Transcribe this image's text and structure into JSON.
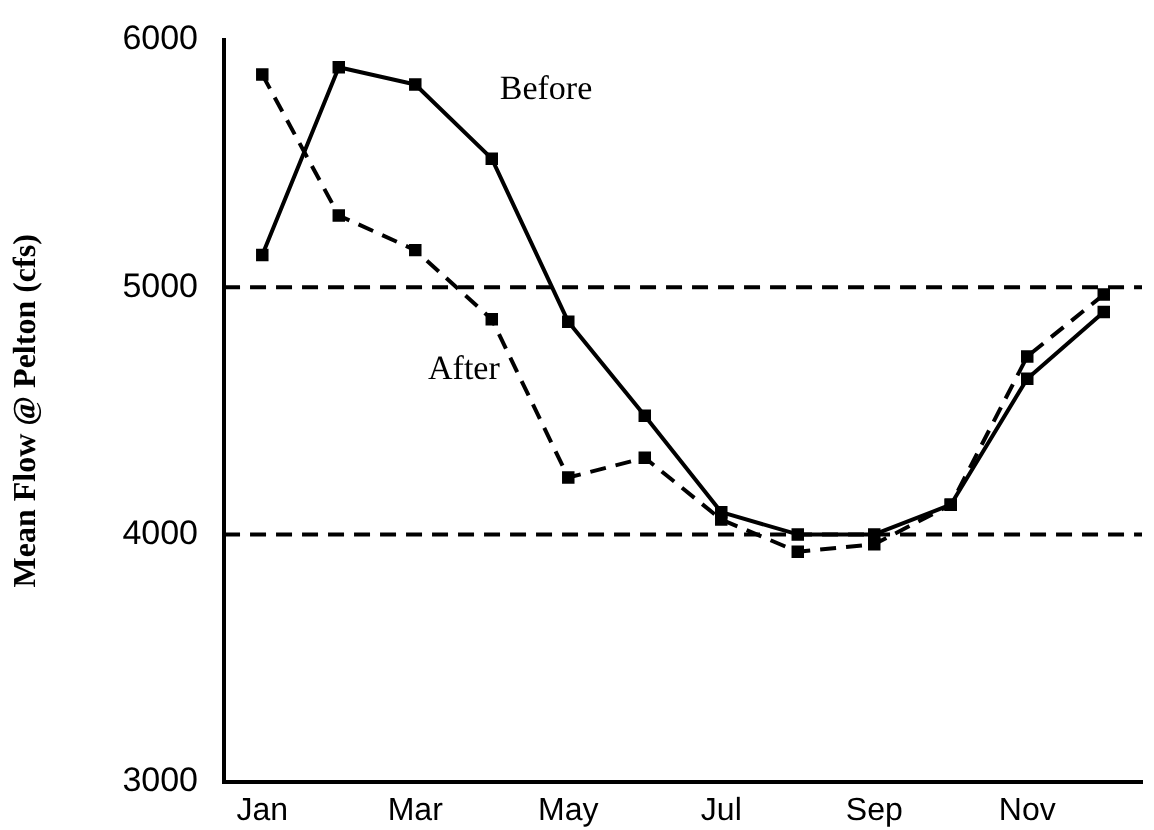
{
  "chart_data": {
    "type": "line",
    "ylabel": "Mean Flow @ Pelton (cfs)",
    "categories": [
      "Jan",
      null,
      "Mar",
      null,
      "May",
      null,
      "Jul",
      null,
      "Sep",
      null,
      "Nov",
      null
    ],
    "series": [
      {
        "name": "Before",
        "color": "#000000",
        "line_style": "solid",
        "values": [
          5130,
          5890,
          5820,
          5520,
          4860,
          4480,
          4090,
          4000,
          4000,
          4120,
          4630,
          4900
        ]
      },
      {
        "name": "After",
        "color": "#000000",
        "line_style": "dashed",
        "values": [
          5860,
          5290,
          5150,
          4870,
          4230,
          4310,
          4060,
          3930,
          3960,
          4120,
          4720,
          4970
        ]
      }
    ],
    "ylim": [
      3000,
      6000
    ],
    "yticks": [
      3000,
      4000,
      5000,
      6000
    ],
    "grid": false,
    "legend": false,
    "marker": "square",
    "ref_lines": [
      {
        "axis": "y",
        "value": 5000,
        "line_style": "dashed",
        "color": "#000000"
      },
      {
        "axis": "y",
        "value": 4000,
        "line_style": "dashed",
        "color": "#000000"
      }
    ]
  }
}
